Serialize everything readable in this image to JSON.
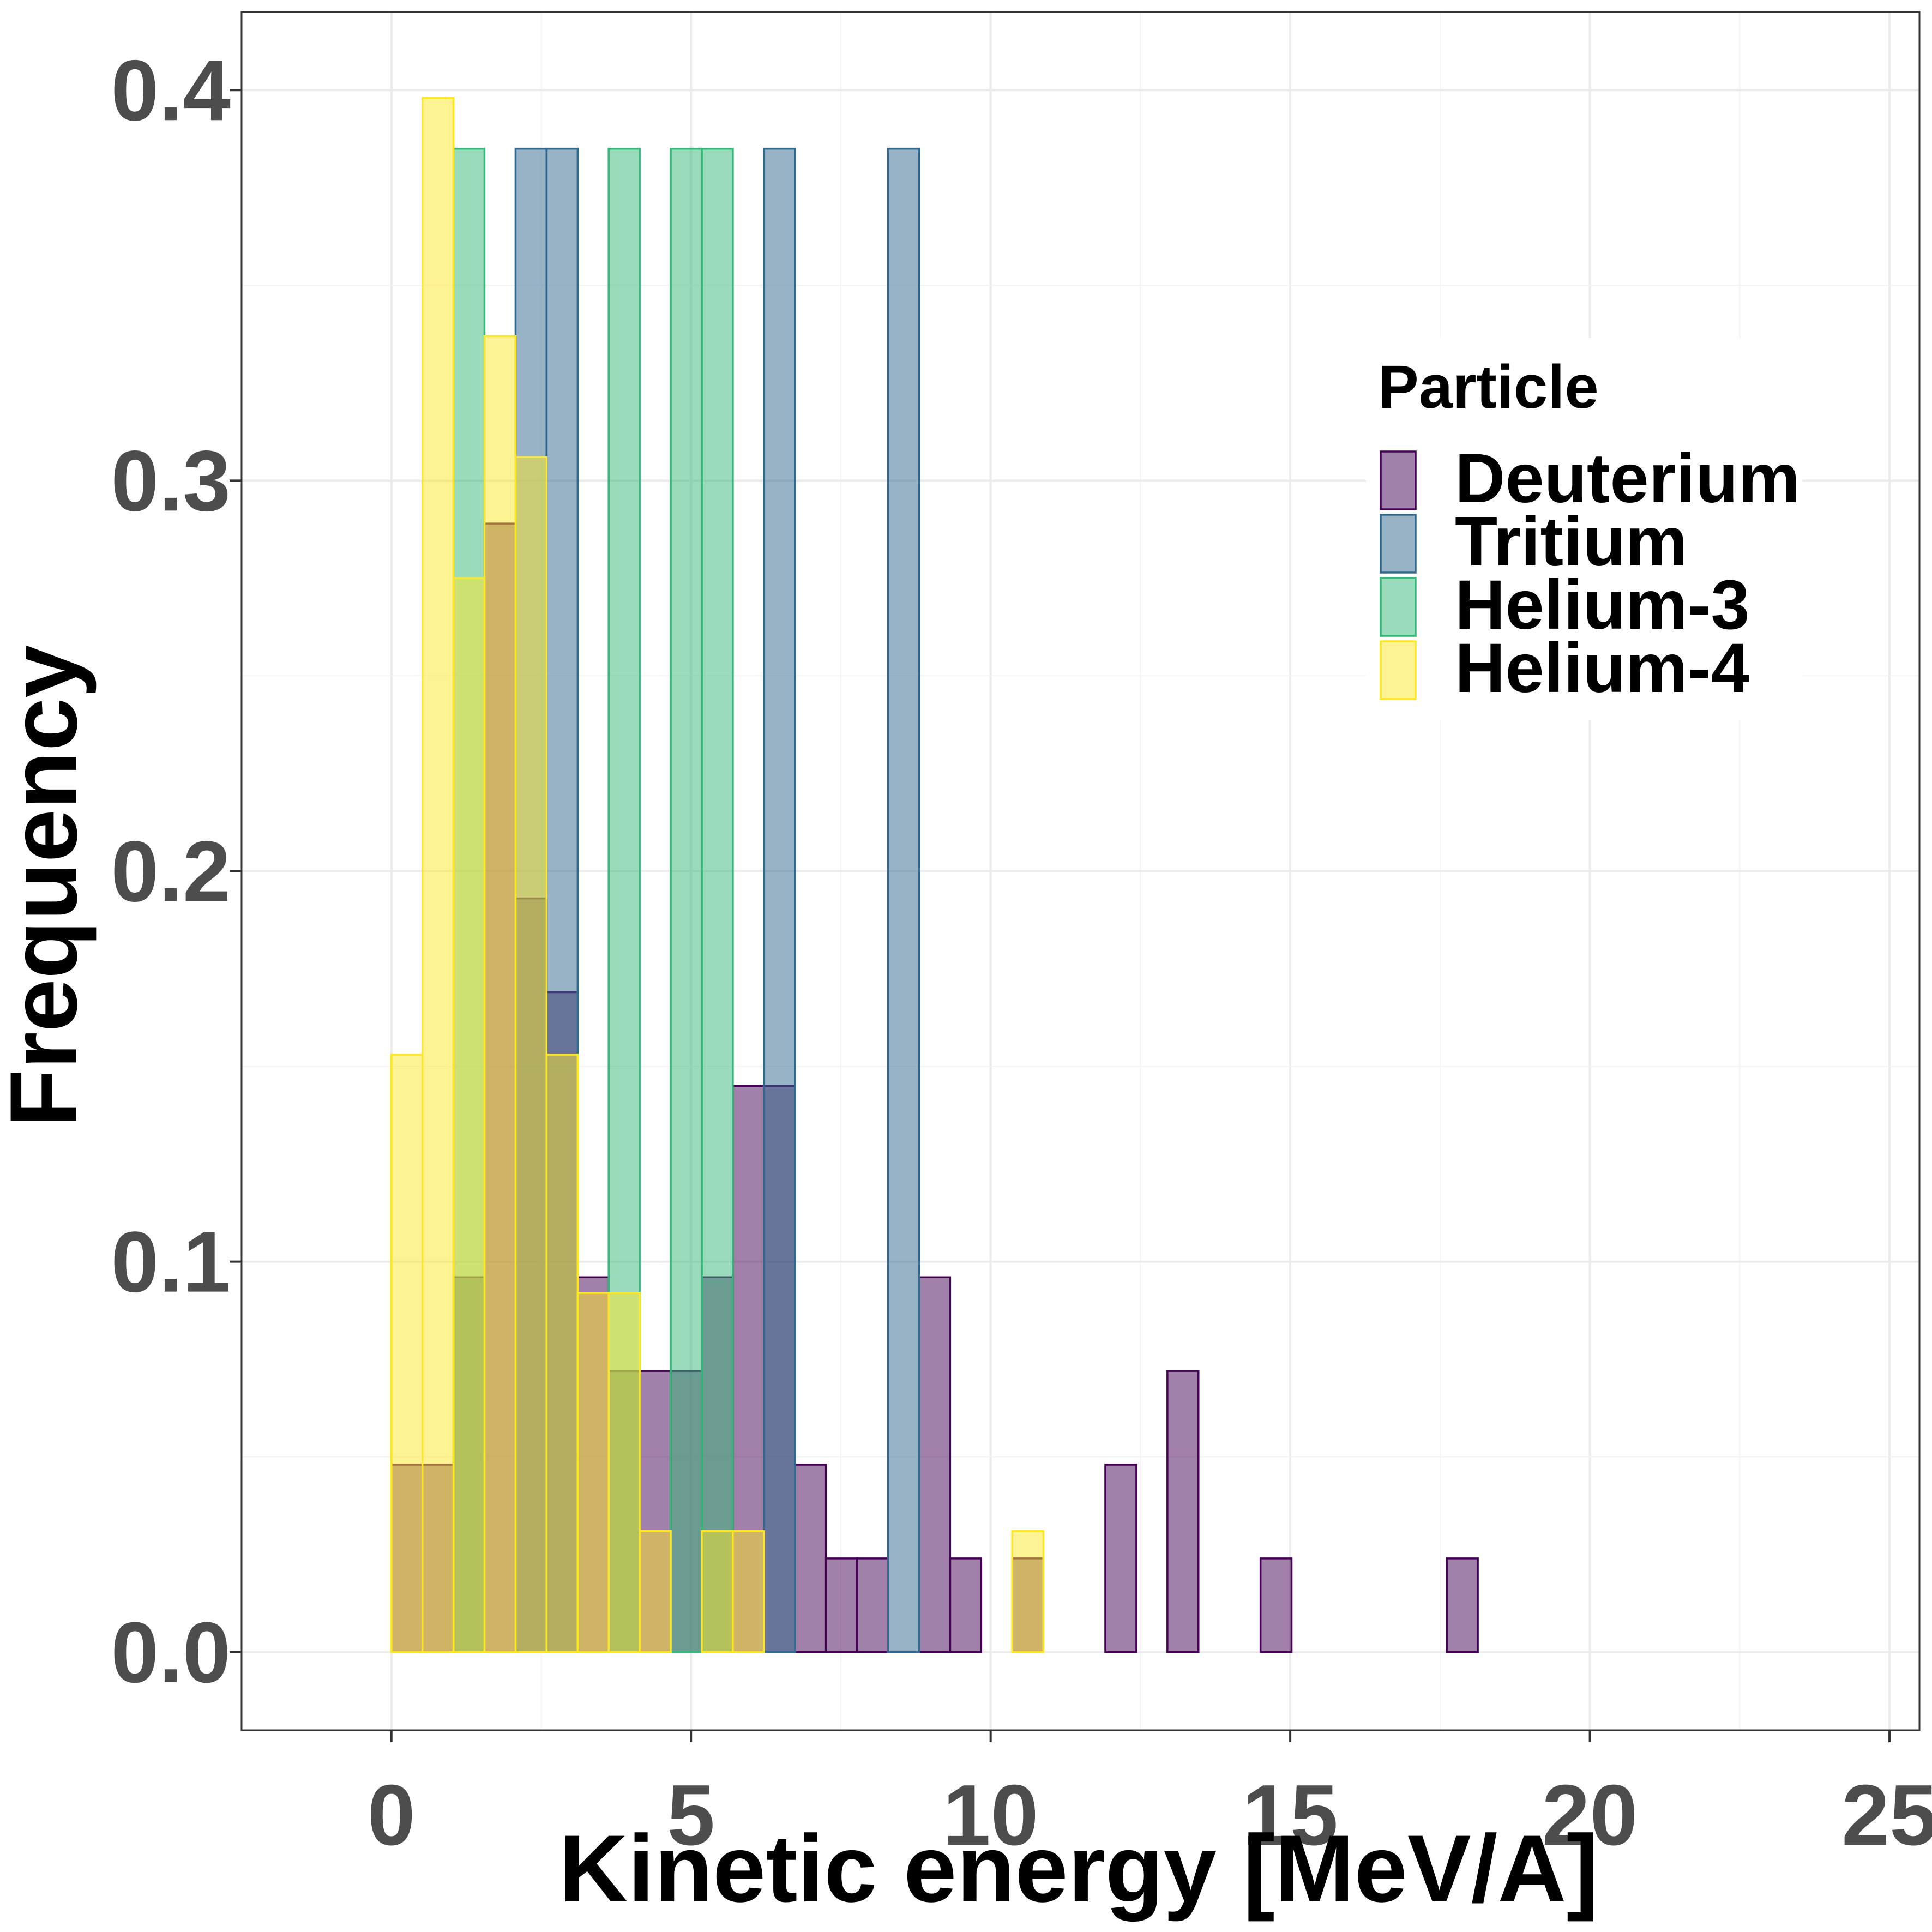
{
  "chart_data": {
    "type": "bar",
    "title": "",
    "xlabel": "Kinetic energy [MeV/A]",
    "ylabel": "Frequency",
    "xlim": [
      -2.5,
      25.5
    ],
    "ylim": [
      -0.02,
      0.42
    ],
    "xticks": [
      0,
      5,
      10,
      15,
      20,
      25
    ],
    "xtick_labels": [
      "0",
      "5",
      "10",
      "15",
      "20",
      "25"
    ],
    "yticks": [
      0.0,
      0.1,
      0.2,
      0.3,
      0.4
    ],
    "ytick_labels": [
      "0.0",
      "0.1",
      "0.2",
      "0.3",
      "0.4"
    ],
    "grid": true,
    "bin_start": 0.0,
    "bin_width": 0.518,
    "legend": {
      "title": "Particle",
      "position": "top-right"
    },
    "series": [
      {
        "name": "Deuterium",
        "fill": "#440154",
        "stroke": "#440154",
        "values": [
          0.048,
          0.048,
          0.096,
          0.289,
          0.193,
          0.169,
          0.096,
          0.072,
          0.072,
          0.072,
          0.096,
          0.145,
          0.145,
          0.048,
          0.024,
          0.024,
          0.0,
          0.096,
          0.024,
          0.0,
          0.024,
          0.0,
          0.0,
          0.048,
          0.0,
          0.072,
          0.0,
          0.0,
          0.024,
          0.0,
          0.0,
          0.0,
          0.0,
          0.0,
          0.024,
          0.0,
          0.0,
          0.0,
          0.0,
          0.0,
          0.0,
          0.0,
          0.0,
          0.0,
          0.0,
          0.0,
          0.0,
          0.0
        ]
      },
      {
        "name": "Tritium",
        "fill": "#31688E",
        "stroke": "#31688E",
        "values": [
          0.0,
          0.0,
          0.0,
          0.0,
          0.385,
          0.385,
          0.0,
          0.0,
          0.0,
          0.0,
          0.0,
          0.0,
          0.385,
          0.0,
          0.0,
          0.0,
          0.385,
          0.0,
          0.0,
          0.0,
          0.0,
          0.0,
          0.0,
          0.0,
          0.0,
          0.0,
          0.0,
          0.0,
          0.0,
          0.0,
          0.0,
          0.0,
          0.0,
          0.0,
          0.0,
          0.0,
          0.0,
          0.0,
          0.0,
          0.0,
          0.0,
          0.0,
          0.0,
          0.0,
          0.0,
          0.0,
          0.0,
          0.0
        ]
      },
      {
        "name": "Helium-3",
        "fill": "#35B779",
        "stroke": "#35B779",
        "values": [
          0.0,
          0.0,
          0.385,
          0.0,
          0.0,
          0.0,
          0.0,
          0.385,
          0.0,
          0.385,
          0.385,
          0.0,
          0.0,
          0.0,
          0.0,
          0.0,
          0.0,
          0.0,
          0.0,
          0.0,
          0.0,
          0.0,
          0.0,
          0.0,
          0.0,
          0.0,
          0.0,
          0.0,
          0.0,
          0.0,
          0.0,
          0.0,
          0.0,
          0.0,
          0.0,
          0.0,
          0.0,
          0.0,
          0.0,
          0.0,
          0.0,
          0.0,
          0.0,
          0.0,
          0.0,
          0.0,
          0.0,
          0.0
        ]
      },
      {
        "name": "Helium-4",
        "fill": "#FDE725",
        "stroke": "#FDE725",
        "values": [
          0.153,
          0.398,
          0.275,
          0.337,
          0.306,
          0.153,
          0.092,
          0.092,
          0.031,
          0.0,
          0.031,
          0.031,
          0.0,
          0.0,
          0.0,
          0.0,
          0.0,
          0.0,
          0.0,
          0.0,
          0.031,
          0.0,
          0.0,
          0.0,
          0.0,
          0.0,
          0.0,
          0.0,
          0.0,
          0.0,
          0.0,
          0.0,
          0.0,
          0.0,
          0.0,
          0.0,
          0.0,
          0.0,
          0.0,
          0.0,
          0.0,
          0.0,
          0.0,
          0.0,
          0.0,
          0.0,
          0.0,
          0.0
        ]
      }
    ]
  }
}
